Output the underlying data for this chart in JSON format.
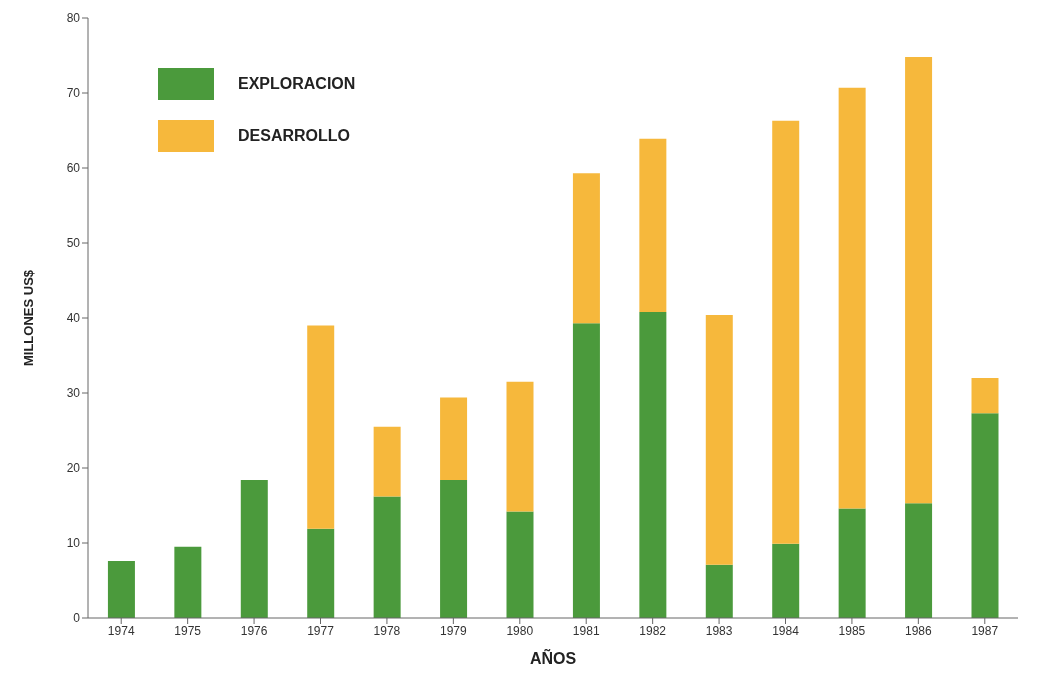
{
  "chart_data": {
    "type": "bar",
    "stacked": true,
    "xlabel": "AÑOS",
    "ylabel": "MILLONES US$",
    "categories": [
      "1974",
      "1975",
      "1976",
      "1977",
      "1978",
      "1979",
      "1980",
      "1981",
      "1982",
      "1983",
      "1984",
      "1985",
      "1986",
      "1987"
    ],
    "series": [
      {
        "name": "EXPLORACION",
        "color": "#4b9a3c",
        "values": [
          7.6,
          9.5,
          18.4,
          11.9,
          16.2,
          18.4,
          14.2,
          39.3,
          40.8,
          7.1,
          9.9,
          14.6,
          15.3,
          27.3
        ]
      },
      {
        "name": "DESARROLLO",
        "color": "#f6b83c",
        "values": [
          null,
          null,
          null,
          27.1,
          9.3,
          11.0,
          17.3,
          20.0,
          23.1,
          33.3,
          56.4,
          56.1,
          59.5,
          4.7
        ]
      }
    ],
    "ylim": [
      0,
      80
    ],
    "yticks": [
      0,
      10,
      20,
      30,
      40,
      50,
      60,
      70,
      80
    ],
    "grid": false,
    "legend": "top left"
  }
}
